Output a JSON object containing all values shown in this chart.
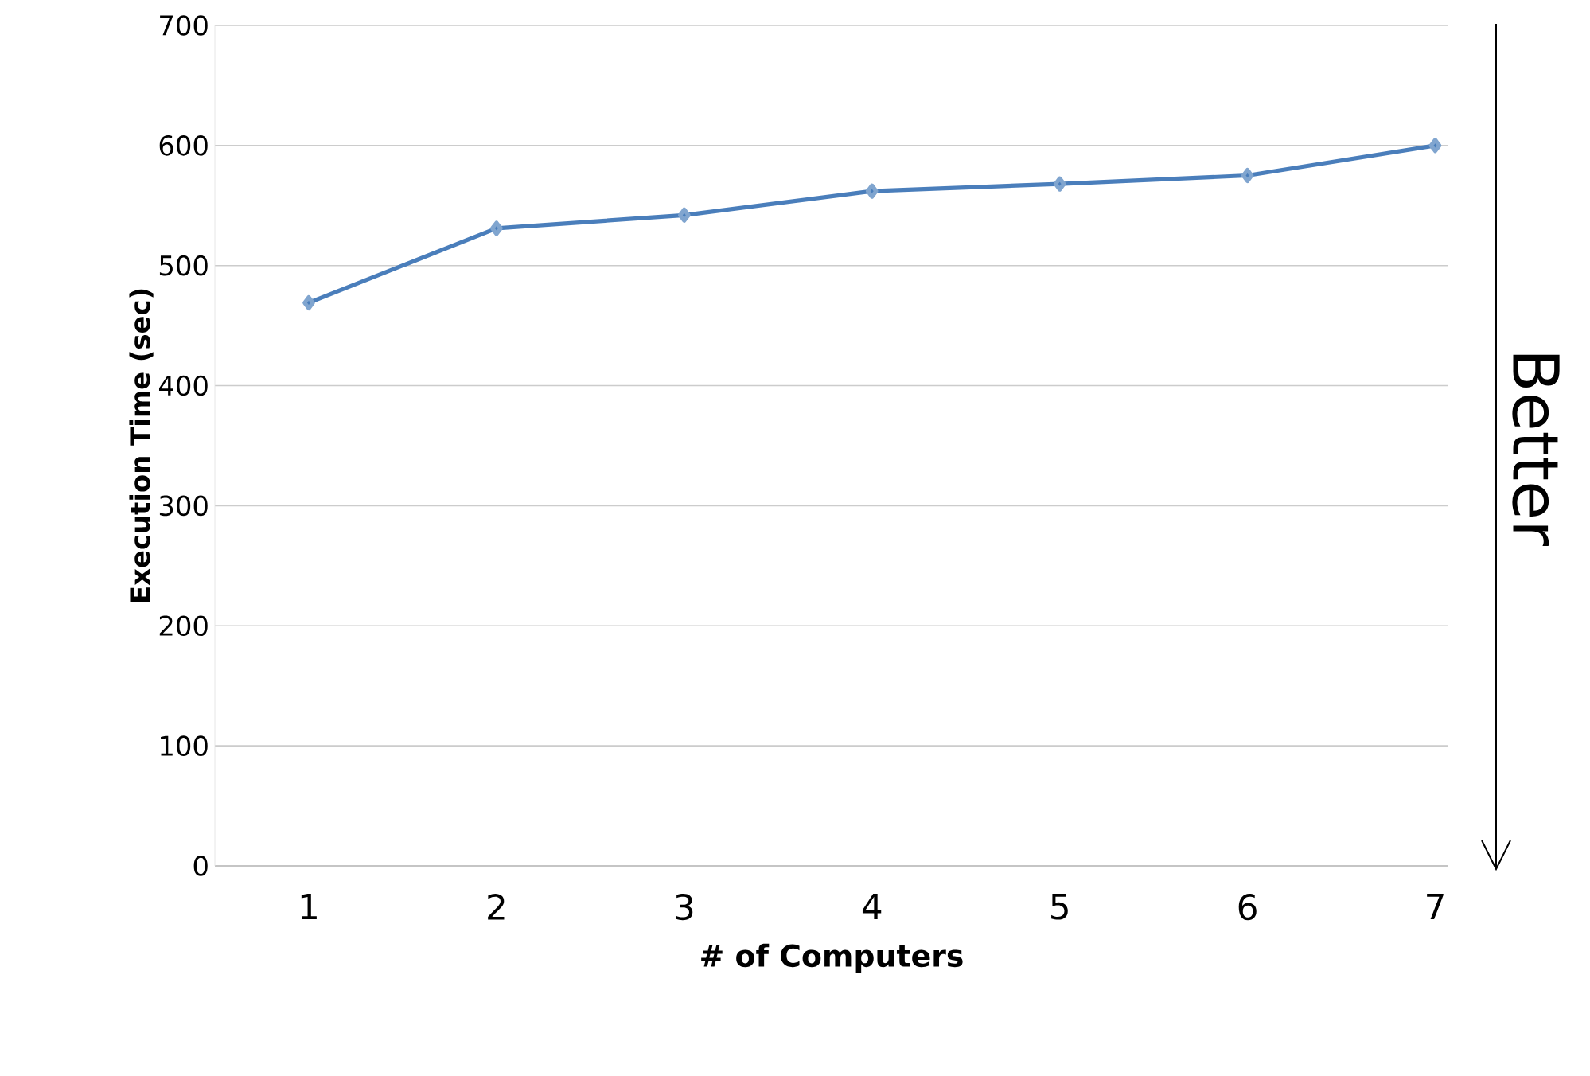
{
  "chart_data": {
    "type": "line",
    "categories": [
      "1",
      "2",
      "3",
      "4",
      "5",
      "6",
      "7"
    ],
    "series": [
      {
        "color": "#4a7ebb",
        "values": [
          469,
          531,
          542,
          562,
          568,
          575,
          600
        ]
      }
    ],
    "ylim": [
      0,
      700
    ],
    "yticks": [
      0,
      100,
      200,
      300,
      400,
      500,
      600,
      700
    ],
    "xlabel": "# of Computers",
    "ylabel": "Execution Time (sec)",
    "annotations": [
      "Better"
    ],
    "grid": "y",
    "marker": "diamond",
    "line_style": "solid"
  }
}
